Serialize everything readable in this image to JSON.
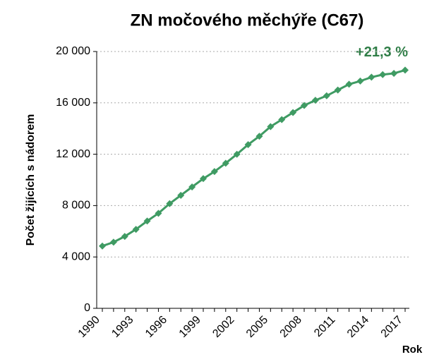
{
  "chart_data": {
    "type": "line",
    "title": "ZN močového měchýře (C67)",
    "x_label": "Rok",
    "y_label": "Počet žijících s nádorem",
    "annotation": "+21,3 %",
    "categories": [
      "1990",
      null,
      null,
      "1993",
      null,
      null,
      "1996",
      null,
      null,
      "1999",
      null,
      null,
      "2002",
      null,
      null,
      "2005",
      null,
      null,
      "2008",
      null,
      null,
      "2011",
      null,
      null,
      "2014",
      null,
      null,
      "2017"
    ],
    "series": [
      {
        "name": "ZN močového měchýře (C67)",
        "color": "#3f9b63",
        "values": [
          4850,
          5150,
          5600,
          6150,
          6800,
          7400,
          8150,
          8800,
          9450,
          10100,
          10650,
          11300,
          12000,
          12750,
          13400,
          14150,
          14700,
          15250,
          15800,
          16200,
          16550,
          17000,
          17450,
          17700,
          18000,
          18200,
          18300,
          18550
        ]
      }
    ],
    "ylim": [
      0,
      20000
    ],
    "yticks": [
      0,
      {
        "value": 4000,
        "label": "4 000"
      },
      {
        "value": 8000,
        "label": "8 000"
      },
      {
        "value": 12000,
        "label": "12 000"
      },
      {
        "value": 16000,
        "label": "16 000"
      },
      {
        "value": 20000,
        "label": "20 000"
      }
    ],
    "grid": true
  }
}
